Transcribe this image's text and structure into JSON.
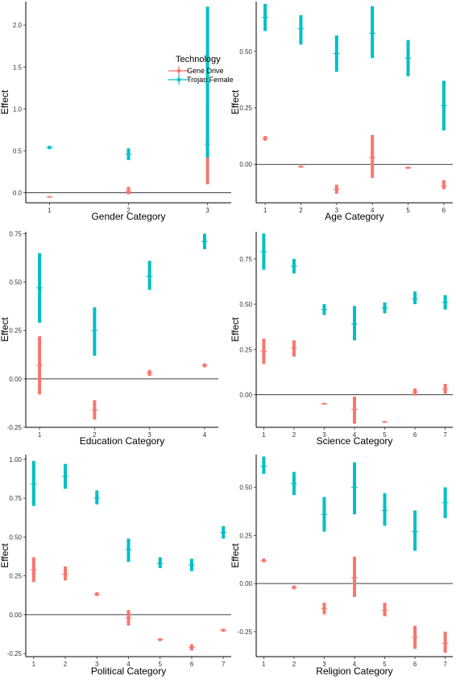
{
  "colors": {
    "gene_drive": "#f8766d",
    "trojan_female": "#00bfc4"
  },
  "legend": {
    "title": "Technology",
    "entries": [
      {
        "label": "Gene Drive",
        "color": "#f8766d"
      },
      {
        "label": "Trojan Female",
        "color": "#00bfc4"
      }
    ]
  },
  "chart_data": [
    {
      "type": "errorbar",
      "xlabel": "Gender Category",
      "ylabel": "Effect",
      "categories": [
        "1",
        "2",
        "3"
      ],
      "ylim": [
        -0.12,
        2.28
      ],
      "yticks": [
        "0.0",
        "0.5",
        "1.0",
        "1.5",
        "2.0"
      ],
      "ytick_values": [
        0,
        0.5,
        1,
        1.5,
        2
      ],
      "legend_position": "right",
      "series": [
        {
          "name": "Gene Drive",
          "color": "#f8766d",
          "points": [
            {
              "x": 1,
              "y": -0.05,
              "lo": -0.06,
              "hi": -0.04
            },
            {
              "x": 2,
              "y": 0.02,
              "lo": -0.02,
              "hi": 0.07
            },
            {
              "x": 3,
              "y": 0.58,
              "lo": 0.1,
              "hi": 1.05
            }
          ]
        },
        {
          "name": "Trojan Female",
          "color": "#00bfc4",
          "points": [
            {
              "x": 1,
              "y": 0.54,
              "lo": 0.52,
              "hi": 0.56
            },
            {
              "x": 2,
              "y": 0.46,
              "lo": 0.39,
              "hi": 0.53
            },
            {
              "x": 3,
              "y": 1.32,
              "lo": 0.42,
              "hi": 2.22
            }
          ]
        }
      ]
    },
    {
      "type": "errorbar",
      "xlabel": "Age Category",
      "ylabel": "Effect",
      "categories": [
        "1",
        "2",
        "3",
        "4",
        "5",
        "6"
      ],
      "ylim": [
        -0.17,
        0.72
      ],
      "yticks": [
        "0.00",
        "0.25",
        "0.50"
      ],
      "ytick_values": [
        0,
        0.25,
        0.5
      ],
      "series": [
        {
          "name": "Gene Drive",
          "color": "#f8766d",
          "points": [
            {
              "x": 1,
              "y": 0.115,
              "lo": 0.105,
              "hi": 0.125
            },
            {
              "x": 2,
              "y": -0.01,
              "lo": -0.015,
              "hi": -0.005
            },
            {
              "x": 3,
              "y": -0.11,
              "lo": -0.13,
              "hi": -0.09
            },
            {
              "x": 4,
              "y": 0.03,
              "lo": -0.06,
              "hi": 0.13
            },
            {
              "x": 5,
              "y": -0.015,
              "lo": -0.02,
              "hi": -0.01
            },
            {
              "x": 6,
              "y": -0.095,
              "lo": -0.11,
              "hi": -0.07
            }
          ]
        },
        {
          "name": "Trojan Female",
          "color": "#00bfc4",
          "points": [
            {
              "x": 1,
              "y": 0.65,
              "lo": 0.59,
              "hi": 0.71
            },
            {
              "x": 2,
              "y": 0.6,
              "lo": 0.53,
              "hi": 0.66
            },
            {
              "x": 3,
              "y": 0.49,
              "lo": 0.41,
              "hi": 0.57
            },
            {
              "x": 4,
              "y": 0.58,
              "lo": 0.47,
              "hi": 0.7
            },
            {
              "x": 5,
              "y": 0.47,
              "lo": 0.39,
              "hi": 0.55
            },
            {
              "x": 6,
              "y": 0.26,
              "lo": 0.15,
              "hi": 0.37
            }
          ]
        }
      ]
    },
    {
      "type": "errorbar",
      "xlabel": "Education Category",
      "ylabel": "Effect",
      "categories": [
        "1",
        "2",
        "3",
        "4"
      ],
      "ylim": [
        -0.25,
        0.76
      ],
      "yticks": [
        "-0.25",
        "0.00",
        "0.25",
        "0.50",
        "0.75"
      ],
      "ytick_values": [
        -0.25,
        0,
        0.25,
        0.5,
        0.75
      ],
      "series": [
        {
          "name": "Gene Drive",
          "color": "#f8766d",
          "points": [
            {
              "x": 1,
              "y": 0.07,
              "lo": -0.08,
              "hi": 0.22
            },
            {
              "x": 2,
              "y": -0.16,
              "lo": -0.21,
              "hi": -0.11
            },
            {
              "x": 3,
              "y": 0.03,
              "lo": 0.015,
              "hi": 0.045
            },
            {
              "x": 4,
              "y": 0.07,
              "lo": 0.06,
              "hi": 0.08
            }
          ]
        },
        {
          "name": "Trojan Female",
          "color": "#00bfc4",
          "points": [
            {
              "x": 1,
              "y": 0.47,
              "lo": 0.29,
              "hi": 0.65
            },
            {
              "x": 2,
              "y": 0.25,
              "lo": 0.12,
              "hi": 0.37
            },
            {
              "x": 3,
              "y": 0.53,
              "lo": 0.46,
              "hi": 0.61
            },
            {
              "x": 4,
              "y": 0.71,
              "lo": 0.67,
              "hi": 0.75
            }
          ]
        }
      ]
    },
    {
      "type": "errorbar",
      "xlabel": "Science Category",
      "ylabel": "Effect",
      "categories": [
        "1",
        "2",
        "3",
        "4",
        "5",
        "6",
        "7"
      ],
      "ylim": [
        -0.18,
        0.9
      ],
      "yticks": [
        "0.00",
        "0.25",
        "0.50",
        "0.75"
      ],
      "ytick_values": [
        0,
        0.25,
        0.5,
        0.75
      ],
      "series": [
        {
          "name": "Gene Drive",
          "color": "#f8766d",
          "points": [
            {
              "x": 1,
              "y": 0.24,
              "lo": 0.17,
              "hi": 0.31
            },
            {
              "x": 2,
              "y": 0.26,
              "lo": 0.21,
              "hi": 0.3
            },
            {
              "x": 3,
              "y": -0.05,
              "lo": -0.055,
              "hi": -0.045
            },
            {
              "x": 4,
              "y": -0.08,
              "lo": -0.16,
              "hi": -0.01
            },
            {
              "x": 5,
              "y": -0.15,
              "lo": -0.155,
              "hi": -0.145
            },
            {
              "x": 6,
              "y": 0.015,
              "lo": -0.005,
              "hi": 0.035
            },
            {
              "x": 7,
              "y": 0.03,
              "lo": 0.005,
              "hi": 0.06
            }
          ]
        },
        {
          "name": "Trojan Female",
          "color": "#00bfc4",
          "points": [
            {
              "x": 1,
              "y": 0.79,
              "lo": 0.69,
              "hi": 0.89
            },
            {
              "x": 2,
              "y": 0.71,
              "lo": 0.67,
              "hi": 0.75
            },
            {
              "x": 3,
              "y": 0.47,
              "lo": 0.44,
              "hi": 0.5
            },
            {
              "x": 4,
              "y": 0.39,
              "lo": 0.3,
              "hi": 0.49
            },
            {
              "x": 5,
              "y": 0.48,
              "lo": 0.45,
              "hi": 0.51
            },
            {
              "x": 6,
              "y": 0.53,
              "lo": 0.5,
              "hi": 0.57
            },
            {
              "x": 7,
              "y": 0.51,
              "lo": 0.47,
              "hi": 0.55
            }
          ]
        }
      ]
    },
    {
      "type": "errorbar",
      "xlabel": "Political Category",
      "ylabel": "Effect",
      "categories": [
        "1",
        "2",
        "3",
        "4",
        "5",
        "6",
        "7"
      ],
      "ylim": [
        -0.27,
        1.03
      ],
      "yticks": [
        "-0.25",
        "0.00",
        "0.25",
        "0.50",
        "0.75",
        "1.00"
      ],
      "ytick_values": [
        -0.25,
        0,
        0.25,
        0.5,
        0.75,
        1
      ],
      "series": [
        {
          "name": "Gene Drive",
          "color": "#f8766d",
          "points": [
            {
              "x": 1,
              "y": 0.29,
              "lo": 0.21,
              "hi": 0.37
            },
            {
              "x": 2,
              "y": 0.26,
              "lo": 0.22,
              "hi": 0.31
            },
            {
              "x": 3,
              "y": 0.13,
              "lo": 0.12,
              "hi": 0.145
            },
            {
              "x": 4,
              "y": -0.02,
              "lo": -0.07,
              "hi": 0.03
            },
            {
              "x": 5,
              "y": -0.16,
              "lo": -0.17,
              "hi": -0.15
            },
            {
              "x": 6,
              "y": -0.21,
              "lo": -0.23,
              "hi": -0.19
            },
            {
              "x": 7,
              "y": -0.1,
              "lo": -0.11,
              "hi": -0.09
            }
          ]
        },
        {
          "name": "Trojan Female",
          "color": "#00bfc4",
          "points": [
            {
              "x": 1,
              "y": 0.84,
              "lo": 0.7,
              "hi": 0.99
            },
            {
              "x": 2,
              "y": 0.89,
              "lo": 0.81,
              "hi": 0.97
            },
            {
              "x": 3,
              "y": 0.75,
              "lo": 0.71,
              "hi": 0.8
            },
            {
              "x": 4,
              "y": 0.42,
              "lo": 0.34,
              "hi": 0.49
            },
            {
              "x": 5,
              "y": 0.33,
              "lo": 0.3,
              "hi": 0.37
            },
            {
              "x": 6,
              "y": 0.32,
              "lo": 0.28,
              "hi": 0.36
            },
            {
              "x": 7,
              "y": 0.53,
              "lo": 0.49,
              "hi": 0.57
            }
          ]
        }
      ]
    },
    {
      "type": "errorbar",
      "xlabel": "Religion Category",
      "ylabel": "Effect",
      "categories": [
        "1",
        "2",
        "3",
        "4",
        "5",
        "6",
        "7"
      ],
      "ylim": [
        -0.38,
        0.67
      ],
      "yticks": [
        "-0.25",
        "0.00",
        "0.25",
        "0.50"
      ],
      "ytick_values": [
        -0.25,
        0,
        0.25,
        0.5
      ],
      "series": [
        {
          "name": "Gene Drive",
          "color": "#f8766d",
          "points": [
            {
              "x": 1,
              "y": 0.12,
              "lo": 0.11,
              "hi": 0.13
            },
            {
              "x": 2,
              "y": -0.02,
              "lo": -0.03,
              "hi": -0.01
            },
            {
              "x": 3,
              "y": -0.13,
              "lo": -0.16,
              "hi": -0.1
            },
            {
              "x": 4,
              "y": 0.03,
              "lo": -0.07,
              "hi": 0.14
            },
            {
              "x": 5,
              "y": -0.14,
              "lo": -0.17,
              "hi": -0.1
            },
            {
              "x": 6,
              "y": -0.28,
              "lo": -0.34,
              "hi": -0.22
            },
            {
              "x": 7,
              "y": -0.31,
              "lo": -0.36,
              "hi": -0.25
            }
          ]
        },
        {
          "name": "Trojan Female",
          "color": "#00bfc4",
          "points": [
            {
              "x": 1,
              "y": 0.61,
              "lo": 0.57,
              "hi": 0.66
            },
            {
              "x": 2,
              "y": 0.52,
              "lo": 0.46,
              "hi": 0.58
            },
            {
              "x": 3,
              "y": 0.36,
              "lo": 0.27,
              "hi": 0.45
            },
            {
              "x": 4,
              "y": 0.5,
              "lo": 0.36,
              "hi": 0.63
            },
            {
              "x": 5,
              "y": 0.38,
              "lo": 0.3,
              "hi": 0.47
            },
            {
              "x": 6,
              "y": 0.27,
              "lo": 0.17,
              "hi": 0.38
            },
            {
              "x": 7,
              "y": 0.42,
              "lo": 0.34,
              "hi": 0.5
            }
          ]
        }
      ]
    }
  ]
}
